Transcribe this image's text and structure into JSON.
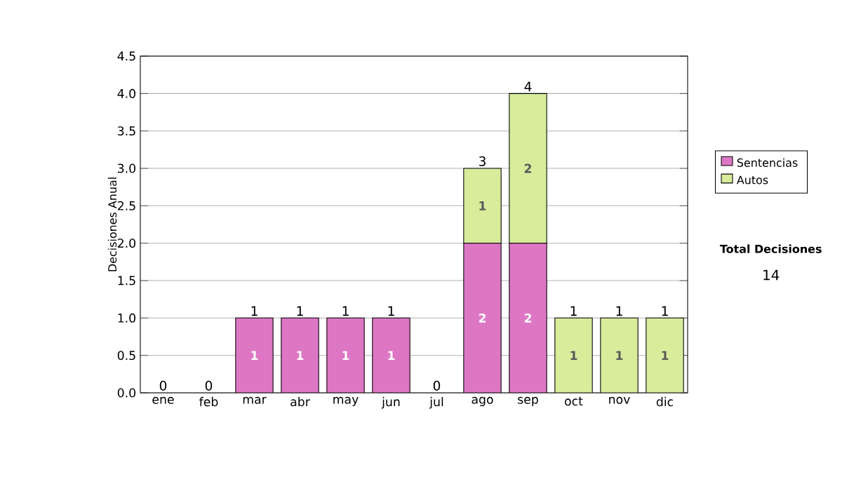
{
  "chart_data": {
    "type": "bar",
    "stacked": true,
    "ylabel": "Decisiones Anual",
    "categories": [
      "ene",
      "feb",
      "mar",
      "abr",
      "may",
      "jun",
      "jul",
      "ago",
      "sep",
      "oct",
      "nov",
      "dic"
    ],
    "series": [
      {
        "name": "Sentencias",
        "color": "#dd77c4",
        "values": [
          0,
          0,
          1,
          1,
          1,
          1,
          0,
          2,
          2,
          0,
          0,
          0
        ],
        "value_labels": [
          null,
          null,
          "1",
          "1",
          "1",
          "1",
          null,
          "2",
          "2",
          null,
          null,
          null
        ]
      },
      {
        "name": "Autos",
        "color": "#d8ec9c",
        "values": [
          0,
          0,
          0,
          0,
          0,
          0,
          0,
          1,
          2,
          1,
          1,
          1
        ],
        "value_labels": [
          null,
          null,
          null,
          null,
          null,
          null,
          null,
          "1",
          "2",
          "1",
          "1",
          "1"
        ]
      }
    ],
    "ylim": [
      0,
      4.5
    ],
    "yticks": [
      {
        "value": 0,
        "label": "0.0"
      },
      {
        "value": 0.5,
        "label": "0.5"
      },
      {
        "value": 1,
        "label": "1.0"
      },
      {
        "value": 1.5,
        "label": "1.5"
      },
      {
        "value": 2,
        "label": "2.0"
      },
      {
        "value": 2.5,
        "label": "2.5"
      },
      {
        "value": 3,
        "label": "3.0"
      },
      {
        "value": 3.5,
        "label": "3.5"
      },
      {
        "value": 4,
        "label": "4.0"
      },
      {
        "value": 4.5,
        "label": "4.5"
      }
    ],
    "grid": "y",
    "legend": "right",
    "totals": [
      "0",
      "0",
      "1",
      "1",
      "1",
      "1",
      "0",
      "3",
      "4",
      "1",
      "1",
      "1"
    ],
    "annotations": [
      "Total Decisiones",
      "14"
    ]
  }
}
